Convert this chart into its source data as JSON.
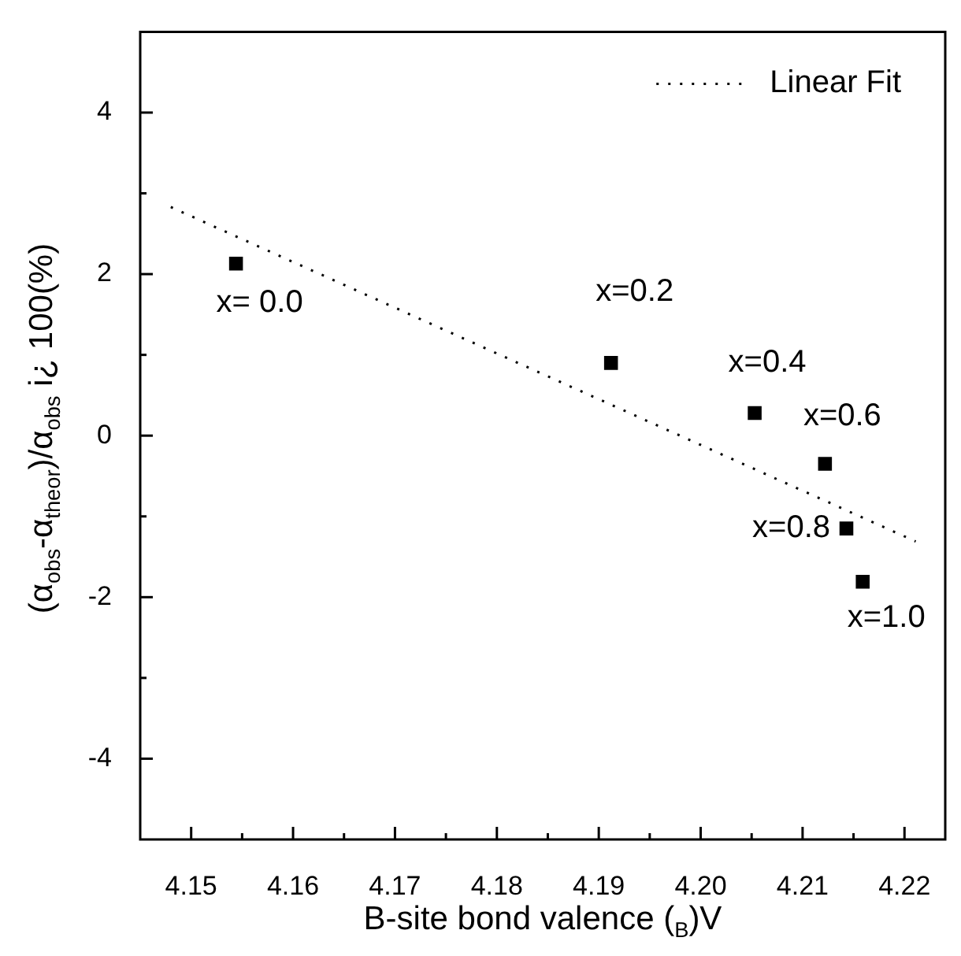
{
  "chart_data": {
    "type": "scatter",
    "xlabel": "B-site bond valence ($_{B}$)V",
    "ylabel": "(α$_{obs}$-α$_{theor}$)/α$_{obs}$ i¿ 100(%)",
    "series": [
      {
        "color": "#000000",
        "marker": "square",
        "x": [
          4.1544,
          4.1912,
          4.2053,
          4.2122,
          4.2143,
          4.2159
        ],
        "values": [
          2.13,
          0.9,
          0.28,
          -0.35,
          -1.15,
          -1.81
        ]
      },
      {
        "type": "line",
        "name": "Linear Fit",
        "color": "#000000",
        "line_style": "dotted",
        "marker": "none",
        "x": [
          4.148,
          4.2211
        ],
        "values": [
          2.83,
          -1.31
        ]
      }
    ],
    "annotations": [
      {
        "text": "x= 0.0",
        "x": 4.1544,
        "y": 2.13
      },
      {
        "text": "x=0.2",
        "x": 4.1912,
        "y": 0.9
      },
      {
        "text": "x=0.4",
        "x": 4.2053,
        "y": 0.28
      },
      {
        "text": "x=0.6",
        "x": 4.2122,
        "y": -0.35
      },
      {
        "text": "x=0.8",
        "x": 4.2143,
        "y": -1.15
      },
      {
        "text": "x=1.0",
        "x": 4.2159,
        "y": -1.81
      }
    ],
    "xlim": [
      4.145,
      4.224
    ],
    "xticks": [
      4.15,
      {
        "value": 4.155,
        "label": null
      },
      4.16,
      {
        "value": 4.165,
        "label": null
      },
      4.17,
      {
        "value": 4.175,
        "label": null
      },
      4.18,
      {
        "value": 4.185,
        "label": null
      },
      4.19,
      {
        "value": 4.195,
        "label": null
      },
      {
        "value": 4.2,
        "label": "4.20"
      },
      {
        "value": 4.205,
        "label": null
      },
      4.21,
      {
        "value": 4.215,
        "label": null
      },
      4.22
    ],
    "ylim": [
      -5,
      5
    ],
    "yticks": [
      -4,
      {
        "value": -3,
        "label": null
      },
      -2,
      {
        "value": -1,
        "label": null
      },
      0,
      {
        "value": 1,
        "label": null
      },
      2,
      {
        "value": 3,
        "label": null
      },
      4
    ],
    "grid": false,
    "legend": "top right"
  }
}
